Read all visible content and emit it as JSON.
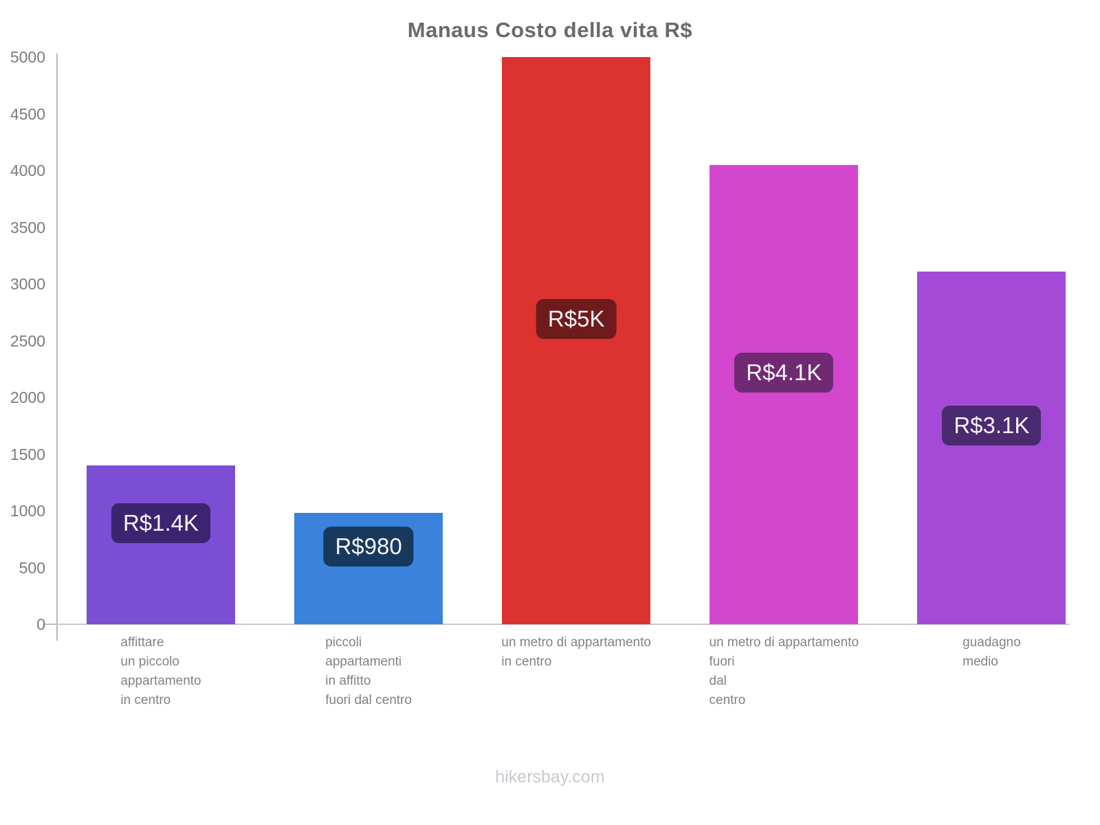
{
  "page": {
    "footer": "hikersbay.com",
    "colors": {
      "background": "#ffffff",
      "title_text": "#6a6a6a",
      "axis_line": "#b9b9b9",
      "ytick_text": "#7b7b7b",
      "xlabel_text": "#828282",
      "value_text": "#f6f2fa",
      "footer_text": "#c7c7ce"
    }
  },
  "chart_data": {
    "type": "bar",
    "title": "Manaus Costo della vita R$",
    "xlabel": "",
    "ylabel": "",
    "currency": "R$",
    "ylim": [
      0,
      5000
    ],
    "yticks": [
      0,
      500,
      1000,
      1500,
      2000,
      2500,
      3000,
      3500,
      4000,
      4500,
      5000
    ],
    "grid": false,
    "legend": false,
    "categories": [
      "affittare un piccolo appartamento in centro",
      "piccoli appartamenti in affitto fuori dal centro",
      "un metro di appartamento in centro",
      "un metro di appartamento fuori dal centro",
      "guadagno medio"
    ],
    "category_lines": [
      [
        "affittare",
        "un piccolo",
        "appartamento",
        "in centro"
      ],
      [
        "piccoli",
        "appartamenti",
        "in affitto",
        "fuori dal centro"
      ],
      [
        "un metro di appartamento",
        "in centro"
      ],
      [
        "un metro di appartamento",
        "fuori",
        "dal",
        "centro"
      ],
      [
        "guadagno",
        "medio"
      ]
    ],
    "values": [
      1400,
      980,
      5000,
      4050,
      3110
    ],
    "value_labels": [
      "R$1.4K",
      "R$980",
      "R$5K",
      "R$4.1K",
      "R$3.1K"
    ],
    "bar_colors": [
      "#7c4ed4",
      "#3b82dc",
      "#dc3330",
      "#d347ce",
      "#a44ad6"
    ],
    "value_label_bg": [
      "#3b2470",
      "#17395d",
      "#6f1b1b",
      "#702a72",
      "#4b2a70"
    ]
  }
}
